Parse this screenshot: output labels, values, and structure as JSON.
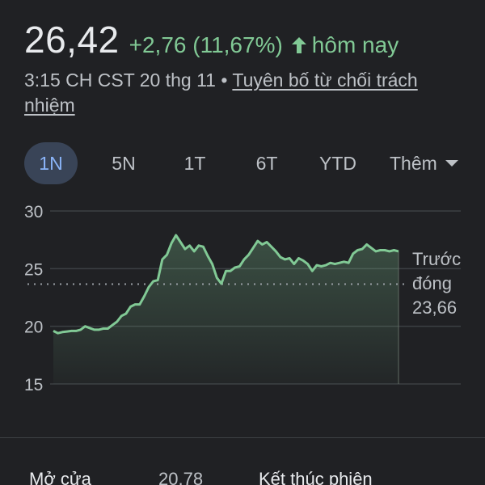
{
  "quote": {
    "price": "26,42",
    "change": "+2,76 (11,67%)",
    "period_label": "hôm nay",
    "timestamp": "3:15 CH CST 20 thg 11",
    "separator": "•",
    "disclaimer": "Tuyên bố từ chối trách nhiệm"
  },
  "tabs": [
    {
      "label": "1N",
      "active": true
    },
    {
      "label": "5N",
      "active": false
    },
    {
      "label": "1T",
      "active": false
    },
    {
      "label": "6T",
      "active": false
    },
    {
      "label": "YTD",
      "active": false
    },
    {
      "label": "Thêm",
      "active": false
    }
  ],
  "icons": {
    "change_arrow": "arrow-up-icon",
    "more_caret": "caret-down-icon"
  },
  "colors": {
    "positive": "#81c995",
    "background": "#202124",
    "active_tab_bg": "#394457",
    "active_tab_text": "#8ab4f8"
  },
  "previous_close": {
    "label_line1": "Trước",
    "label_line2": "đóng",
    "value": "23,66"
  },
  "chart_data": {
    "type": "area",
    "ylim": [
      15,
      30
    ],
    "yticks": [
      "30",
      "25",
      "20",
      "15"
    ],
    "ytick_values": [
      30,
      25,
      20,
      15
    ],
    "reference_line": 23.66,
    "x": [
      0,
      1,
      2,
      3,
      4,
      5,
      6,
      7,
      8,
      9,
      10,
      11,
      12,
      13,
      14,
      15,
      16,
      17,
      18,
      19,
      20,
      21,
      22,
      23,
      24,
      25,
      26,
      27,
      28,
      29,
      30,
      31,
      32,
      33,
      34,
      35,
      36,
      37,
      38,
      39,
      40,
      41,
      42,
      43,
      44,
      45,
      46,
      47,
      48,
      49,
      50,
      51,
      52,
      53,
      54,
      55,
      56,
      57,
      58,
      59,
      60,
      61,
      62,
      63,
      64,
      65,
      66,
      67,
      68,
      69,
      70,
      71,
      72,
      73,
      74,
      75,
      76
    ],
    "values": [
      19.6,
      19.4,
      19.5,
      19.55,
      19.6,
      19.6,
      19.7,
      20.0,
      19.85,
      19.7,
      19.7,
      19.8,
      19.8,
      20.1,
      20.4,
      20.9,
      21.1,
      21.7,
      21.9,
      21.9,
      22.6,
      23.4,
      23.9,
      24.0,
      25.8,
      26.2,
      27.2,
      27.9,
      27.3,
      26.7,
      27.0,
      26.5,
      27.0,
      26.9,
      26.1,
      25.4,
      24.2,
      23.7,
      24.8,
      24.8,
      25.1,
      25.2,
      25.8,
      26.2,
      26.8,
      27.4,
      27.1,
      27.3,
      26.9,
      26.5,
      26.0,
      25.8,
      25.9,
      25.4,
      25.9,
      25.7,
      25.4,
      24.8,
      25.3,
      25.2,
      25.3,
      25.5,
      25.4,
      25.5,
      25.6,
      25.5,
      26.3,
      26.6,
      26.7,
      27.1,
      26.8,
      26.5,
      26.6,
      26.6,
      26.5,
      26.6,
      26.5
    ]
  },
  "stats": {
    "open_label": "Mở cửa",
    "open_value": "20,78",
    "close_label": "Kết thúc phiên"
  }
}
